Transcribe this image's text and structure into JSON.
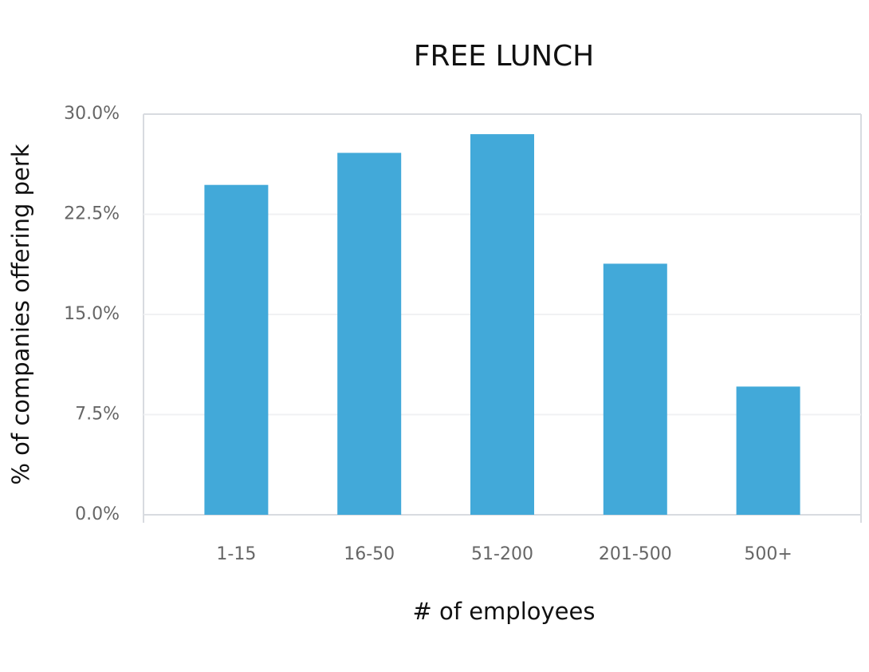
{
  "chart_data": {
    "type": "bar",
    "title": "FREE LUNCH",
    "x_label": "# of employees",
    "y_label": "% of companies offering perk",
    "categories": [
      "1-15",
      "16-50",
      "51-200",
      "201-500",
      "500+"
    ],
    "values": [
      24.7,
      27.1,
      28.5,
      18.8,
      9.6
    ],
    "color": "#42a9d9",
    "ylim": [
      0,
      30
    ],
    "yticks": [
      {
        "value": 0,
        "label": "0.0%"
      },
      {
        "value": 7.5,
        "label": "7.5%"
      },
      {
        "value": 15,
        "label": "15.0%"
      },
      {
        "value": 22.5,
        "label": "22.5%"
      },
      {
        "value": 30,
        "label": "30.0%"
      }
    ],
    "grid": true
  }
}
